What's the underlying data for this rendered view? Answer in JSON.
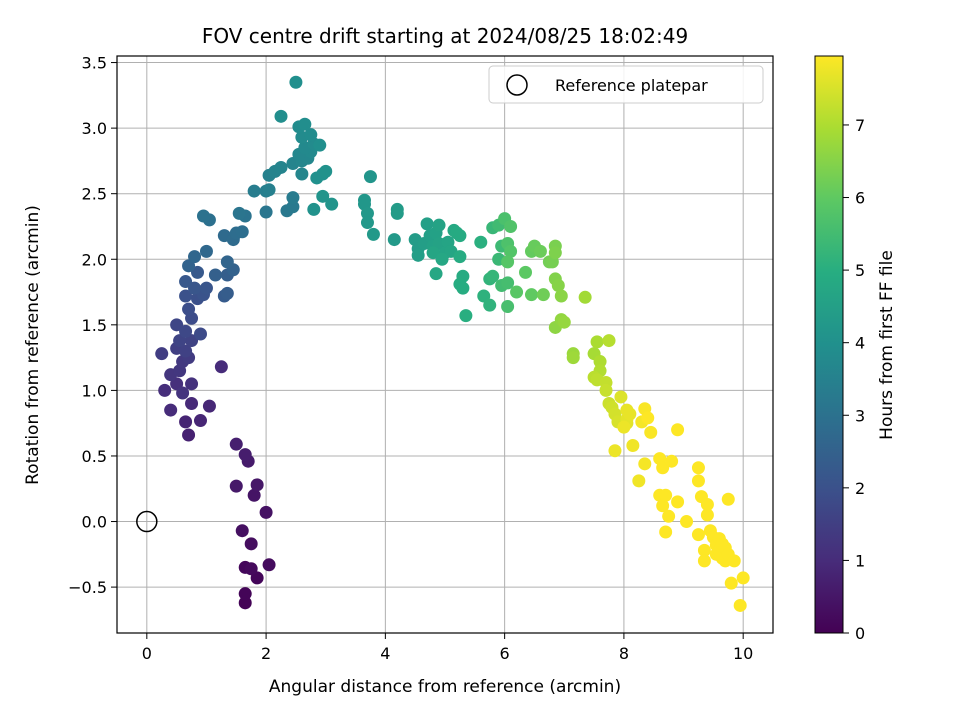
{
  "chart_data": {
    "type": "scatter",
    "title": "FOV centre drift starting at 2024/08/25 18:02:49",
    "xlabel": "Angular distance from reference (arcmin)",
    "ylabel": "Rotation from reference (arcmin)",
    "xlim": [
      -0.5,
      10.5
    ],
    "ylim": [
      -0.85,
      3.55
    ],
    "xticks": [
      0,
      2,
      4,
      6,
      8,
      10
    ],
    "xtick_labels": [
      "0",
      "2",
      "4",
      "6",
      "8",
      "10"
    ],
    "yticks": [
      -0.5,
      0.0,
      0.5,
      1.0,
      1.5,
      2.0,
      2.5,
      3.0,
      3.5
    ],
    "ytick_labels": [
      "−0.5",
      "0.0",
      "0.5",
      "1.0",
      "1.5",
      "2.0",
      "2.5",
      "3.0",
      "3.5"
    ],
    "grid": true,
    "legend": {
      "position": "top-right",
      "entries": [
        "Reference platepar"
      ]
    },
    "reference_point": {
      "x": 0,
      "y": 0
    },
    "colorbar": {
      "label": "Hours from first FF file",
      "min": 0,
      "max": 7.95,
      "ticks": [
        0,
        1,
        2,
        3,
        4,
        5,
        6,
        7
      ],
      "tick_labels": [
        "0",
        "1",
        "2",
        "3",
        "4",
        "5",
        "6",
        "7"
      ],
      "colormap": "viridis"
    },
    "points": [
      [
        1.65,
        -0.62,
        0.05
      ],
      [
        1.65,
        -0.55,
        0.1
      ],
      [
        1.85,
        -0.43,
        0.12
      ],
      [
        1.65,
        -0.35,
        0.15
      ],
      [
        1.75,
        -0.36,
        0.2
      ],
      [
        2.05,
        -0.33,
        0.25
      ],
      [
        1.75,
        -0.17,
        0.3
      ],
      [
        1.6,
        -0.07,
        0.35
      ],
      [
        2.0,
        0.07,
        0.4
      ],
      [
        1.8,
        0.2,
        0.45
      ],
      [
        1.85,
        0.28,
        0.5
      ],
      [
        1.5,
        0.27,
        0.55
      ],
      [
        1.7,
        0.46,
        0.6
      ],
      [
        1.65,
        0.51,
        0.65
      ],
      [
        1.5,
        0.59,
        0.7
      ],
      [
        0.7,
        0.66,
        0.75
      ],
      [
        0.65,
        0.76,
        0.8
      ],
      [
        0.9,
        0.77,
        0.85
      ],
      [
        1.05,
        0.88,
        0.9
      ],
      [
        0.75,
        0.9,
        0.95
      ],
      [
        0.4,
        0.85,
        1.0
      ],
      [
        1.25,
        1.18,
        1.0
      ],
      [
        0.3,
        1.0,
        1.05
      ],
      [
        0.5,
        1.05,
        1.1
      ],
      [
        0.75,
        1.05,
        1.15
      ],
      [
        0.6,
        0.98,
        1.2
      ],
      [
        0.4,
        1.12,
        1.25
      ],
      [
        0.55,
        1.15,
        1.3
      ],
      [
        0.6,
        1.22,
        1.35
      ],
      [
        0.7,
        1.25,
        1.4
      ],
      [
        0.25,
        1.28,
        1.45
      ],
      [
        0.5,
        1.32,
        1.5
      ],
      [
        0.65,
        1.3,
        1.55
      ],
      [
        0.75,
        1.38,
        1.6
      ],
      [
        0.55,
        1.38,
        1.65
      ],
      [
        0.5,
        1.5,
        1.7
      ],
      [
        0.65,
        1.45,
        1.75
      ],
      [
        0.9,
        1.43,
        1.8
      ],
      [
        0.75,
        1.55,
        1.85
      ],
      [
        0.7,
        1.62,
        1.9
      ],
      [
        0.85,
        1.7,
        1.95
      ],
      [
        0.65,
        1.72,
        2.0
      ],
      [
        0.95,
        1.73,
        2.05
      ],
      [
        1.0,
        1.78,
        2.1
      ],
      [
        0.8,
        1.78,
        2.15
      ],
      [
        0.65,
        1.83,
        2.2
      ],
      [
        0.85,
        1.9,
        2.25
      ],
      [
        1.3,
        1.72,
        2.3
      ],
      [
        1.35,
        1.74,
        2.35
      ],
      [
        1.35,
        1.88,
        2.4
      ],
      [
        1.15,
        1.88,
        2.45
      ],
      [
        1.45,
        1.92,
        2.5
      ],
      [
        0.7,
        1.95,
        2.55
      ],
      [
        1.35,
        1.98,
        2.6
      ],
      [
        0.8,
        2.02,
        2.65
      ],
      [
        1.0,
        2.06,
        2.7
      ],
      [
        1.3,
        2.18,
        2.75
      ],
      [
        1.45,
        2.15,
        2.8
      ],
      [
        1.5,
        2.2,
        2.85
      ],
      [
        1.6,
        2.21,
        2.9
      ],
      [
        1.05,
        2.3,
        2.95
      ],
      [
        0.95,
        2.33,
        3.0
      ],
      [
        1.65,
        2.33,
        3.05
      ],
      [
        1.55,
        2.35,
        3.1
      ],
      [
        2.0,
        2.36,
        3.15
      ],
      [
        2.35,
        2.37,
        3.2
      ],
      [
        2.45,
        2.4,
        3.25
      ],
      [
        2.45,
        2.47,
        3.3
      ],
      [
        1.8,
        2.52,
        3.35
      ],
      [
        2.0,
        2.52,
        3.4
      ],
      [
        2.05,
        2.53,
        3.45
      ],
      [
        2.05,
        2.64,
        3.5
      ],
      [
        2.15,
        2.67,
        3.55
      ],
      [
        2.25,
        2.7,
        3.6
      ],
      [
        2.45,
        2.73,
        3.6
      ],
      [
        2.6,
        2.65,
        3.65
      ],
      [
        2.6,
        2.75,
        3.65
      ],
      [
        2.7,
        2.77,
        3.7
      ],
      [
        2.55,
        2.8,
        3.7
      ],
      [
        2.75,
        2.82,
        3.75
      ],
      [
        2.65,
        2.85,
        3.75
      ],
      [
        2.8,
        2.88,
        3.8
      ],
      [
        2.6,
        2.93,
        3.8
      ],
      [
        2.75,
        2.95,
        3.85
      ],
      [
        2.55,
        3.01,
        3.85
      ],
      [
        2.65,
        3.03,
        3.9
      ],
      [
        2.25,
        3.09,
        3.9
      ],
      [
        2.5,
        3.35,
        3.95
      ],
      [
        2.9,
        2.87,
        3.95
      ],
      [
        2.95,
        2.65,
        4.0
      ],
      [
        2.85,
        2.62,
        4.0
      ],
      [
        3.0,
        2.67,
        4.05
      ],
      [
        2.8,
        2.38,
        4.05
      ],
      [
        2.95,
        2.48,
        4.1
      ],
      [
        3.1,
        2.42,
        4.1
      ],
      [
        3.75,
        2.63,
        4.15
      ],
      [
        3.65,
        2.45,
        4.2
      ],
      [
        3.65,
        2.42,
        4.2
      ],
      [
        3.7,
        2.35,
        4.25
      ],
      [
        3.7,
        2.28,
        4.25
      ],
      [
        3.8,
        2.19,
        4.3
      ],
      [
        4.15,
        2.15,
        4.3
      ],
      [
        4.2,
        2.38,
        4.35
      ],
      [
        4.2,
        2.35,
        4.35
      ],
      [
        4.5,
        2.15,
        4.4
      ],
      [
        4.55,
        2.08,
        4.4
      ],
      [
        4.55,
        2.03,
        4.45
      ],
      [
        4.65,
        2.12,
        4.45
      ],
      [
        4.7,
        2.27,
        4.5
      ],
      [
        4.75,
        2.18,
        4.5
      ],
      [
        4.8,
        2.1,
        4.55
      ],
      [
        4.85,
        2.2,
        4.55
      ],
      [
        4.9,
        2.26,
        4.6
      ],
      [
        4.9,
        2.12,
        4.6
      ],
      [
        5.0,
        2.05,
        4.65
      ],
      [
        5.05,
        2.13,
        4.65
      ],
      [
        5.1,
        2.06,
        4.7
      ],
      [
        4.8,
        2.05,
        4.7
      ],
      [
        4.95,
        2.0,
        4.75
      ],
      [
        4.85,
        1.89,
        4.75
      ],
      [
        5.15,
        2.22,
        4.8
      ],
      [
        5.2,
        2.2,
        4.85
      ],
      [
        5.25,
        2.18,
        4.85
      ],
      [
        5.25,
        2.02,
        4.9
      ],
      [
        5.3,
        1.87,
        4.9
      ],
      [
        5.25,
        1.81,
        4.95
      ],
      [
        5.3,
        1.78,
        4.95
      ],
      [
        5.35,
        1.57,
        5.0
      ],
      [
        5.6,
        2.13,
        5.05
      ],
      [
        5.65,
        1.72,
        5.1
      ],
      [
        5.75,
        1.65,
        5.15
      ],
      [
        5.75,
        1.85,
        5.2
      ],
      [
        5.8,
        1.87,
        5.25
      ],
      [
        5.8,
        2.24,
        5.3
      ],
      [
        5.9,
        2.0,
        5.35
      ],
      [
        5.95,
        2.1,
        5.4
      ],
      [
        5.9,
        2.26,
        5.45
      ],
      [
        5.95,
        1.8,
        5.5
      ],
      [
        6.05,
        1.82,
        5.55
      ],
      [
        6.05,
        1.64,
        5.6
      ],
      [
        6.0,
        2.31,
        5.65
      ],
      [
        6.05,
        2.12,
        5.7
      ],
      [
        6.1,
        2.25,
        5.75
      ],
      [
        6.1,
        2.06,
        5.8
      ],
      [
        6.05,
        1.98,
        5.85
      ],
      [
        6.2,
        1.75,
        5.9
      ],
      [
        6.35,
        1.9,
        5.95
      ],
      [
        6.45,
        1.73,
        6.0
      ],
      [
        6.45,
        2.06,
        6.05
      ],
      [
        6.5,
        2.1,
        6.1
      ],
      [
        6.6,
        2.06,
        6.15
      ],
      [
        6.65,
        1.73,
        6.2
      ],
      [
        6.75,
        1.98,
        6.25
      ],
      [
        6.8,
        1.98,
        6.3
      ],
      [
        6.85,
        2.1,
        6.35
      ],
      [
        6.85,
        2.05,
        6.4
      ],
      [
        6.85,
        1.85,
        6.45
      ],
      [
        6.9,
        1.8,
        6.5
      ],
      [
        6.95,
        1.72,
        6.55
      ],
      [
        6.85,
        1.48,
        6.6
      ],
      [
        6.95,
        1.54,
        6.65
      ],
      [
        7.0,
        1.52,
        6.7
      ],
      [
        7.15,
        1.28,
        6.75
      ],
      [
        7.15,
        1.25,
        6.8
      ],
      [
        7.35,
        1.71,
        6.85
      ],
      [
        7.5,
        1.28,
        6.9
      ],
      [
        7.55,
        1.37,
        6.95
      ],
      [
        7.6,
        1.22,
        7.0
      ],
      [
        7.6,
        1.15,
        7.05
      ],
      [
        7.75,
        1.38,
        7.1
      ],
      [
        7.5,
        1.1,
        7.15
      ],
      [
        7.55,
        1.08,
        7.2
      ],
      [
        7.7,
        1.06,
        7.25
      ],
      [
        7.7,
        1.0,
        7.3
      ],
      [
        7.75,
        0.9,
        7.35
      ],
      [
        7.8,
        0.87,
        7.4
      ],
      [
        7.85,
        0.82,
        7.45
      ],
      [
        7.9,
        0.76,
        7.5
      ],
      [
        7.95,
        0.95,
        7.55
      ],
      [
        8.05,
        0.75,
        7.6
      ],
      [
        8.05,
        0.78,
        7.65
      ],
      [
        8.05,
        0.85,
        7.7
      ],
      [
        8.1,
        0.82,
        7.7
      ],
      [
        7.85,
        0.54,
        7.75
      ],
      [
        8.0,
        0.72,
        7.75
      ],
      [
        8.15,
        0.58,
        7.8
      ],
      [
        8.25,
        0.31,
        7.8
      ],
      [
        8.3,
        0.76,
        7.85
      ],
      [
        8.35,
        0.44,
        7.85
      ],
      [
        8.35,
        0.86,
        7.9
      ],
      [
        8.45,
        0.68,
        7.9
      ],
      [
        8.4,
        0.79,
        7.95
      ],
      [
        8.6,
        0.48,
        7.95
      ],
      [
        8.6,
        0.2,
        7.95
      ],
      [
        8.65,
        0.41,
        7.95
      ],
      [
        8.65,
        0.12,
        7.95
      ],
      [
        8.7,
        -0.08,
        7.95
      ],
      [
        8.7,
        0.2,
        7.95
      ],
      [
        8.75,
        0.04,
        7.95
      ],
      [
        8.8,
        0.46,
        7.95
      ],
      [
        8.9,
        0.15,
        7.95
      ],
      [
        8.9,
        0.7,
        7.95
      ],
      [
        9.05,
        0.0,
        7.95
      ],
      [
        9.25,
        0.41,
        7.95
      ],
      [
        9.25,
        0.31,
        7.95
      ],
      [
        9.25,
        -0.1,
        7.95
      ],
      [
        9.3,
        0.19,
        7.95
      ],
      [
        9.35,
        -0.22,
        7.95
      ],
      [
        9.35,
        -0.3,
        7.95
      ],
      [
        9.4,
        0.05,
        7.95
      ],
      [
        9.4,
        0.13,
        7.95
      ],
      [
        9.45,
        -0.07,
        7.95
      ],
      [
        9.5,
        -0.12,
        7.95
      ],
      [
        9.55,
        -0.18,
        7.95
      ],
      [
        9.55,
        -0.25,
        7.95
      ],
      [
        9.6,
        -0.13,
        7.95
      ],
      [
        9.6,
        -0.22,
        7.95
      ],
      [
        9.65,
        -0.17,
        7.95
      ],
      [
        9.65,
        -0.28,
        7.95
      ],
      [
        9.7,
        -0.3,
        7.95
      ],
      [
        9.7,
        -0.2,
        7.95
      ],
      [
        9.75,
        0.17,
        7.95
      ],
      [
        9.75,
        -0.25,
        7.95
      ],
      [
        9.8,
        -0.47,
        7.95
      ],
      [
        9.85,
        -0.3,
        7.95
      ],
      [
        9.95,
        -0.64,
        7.95
      ],
      [
        10.0,
        -0.43,
        7.95
      ]
    ]
  }
}
